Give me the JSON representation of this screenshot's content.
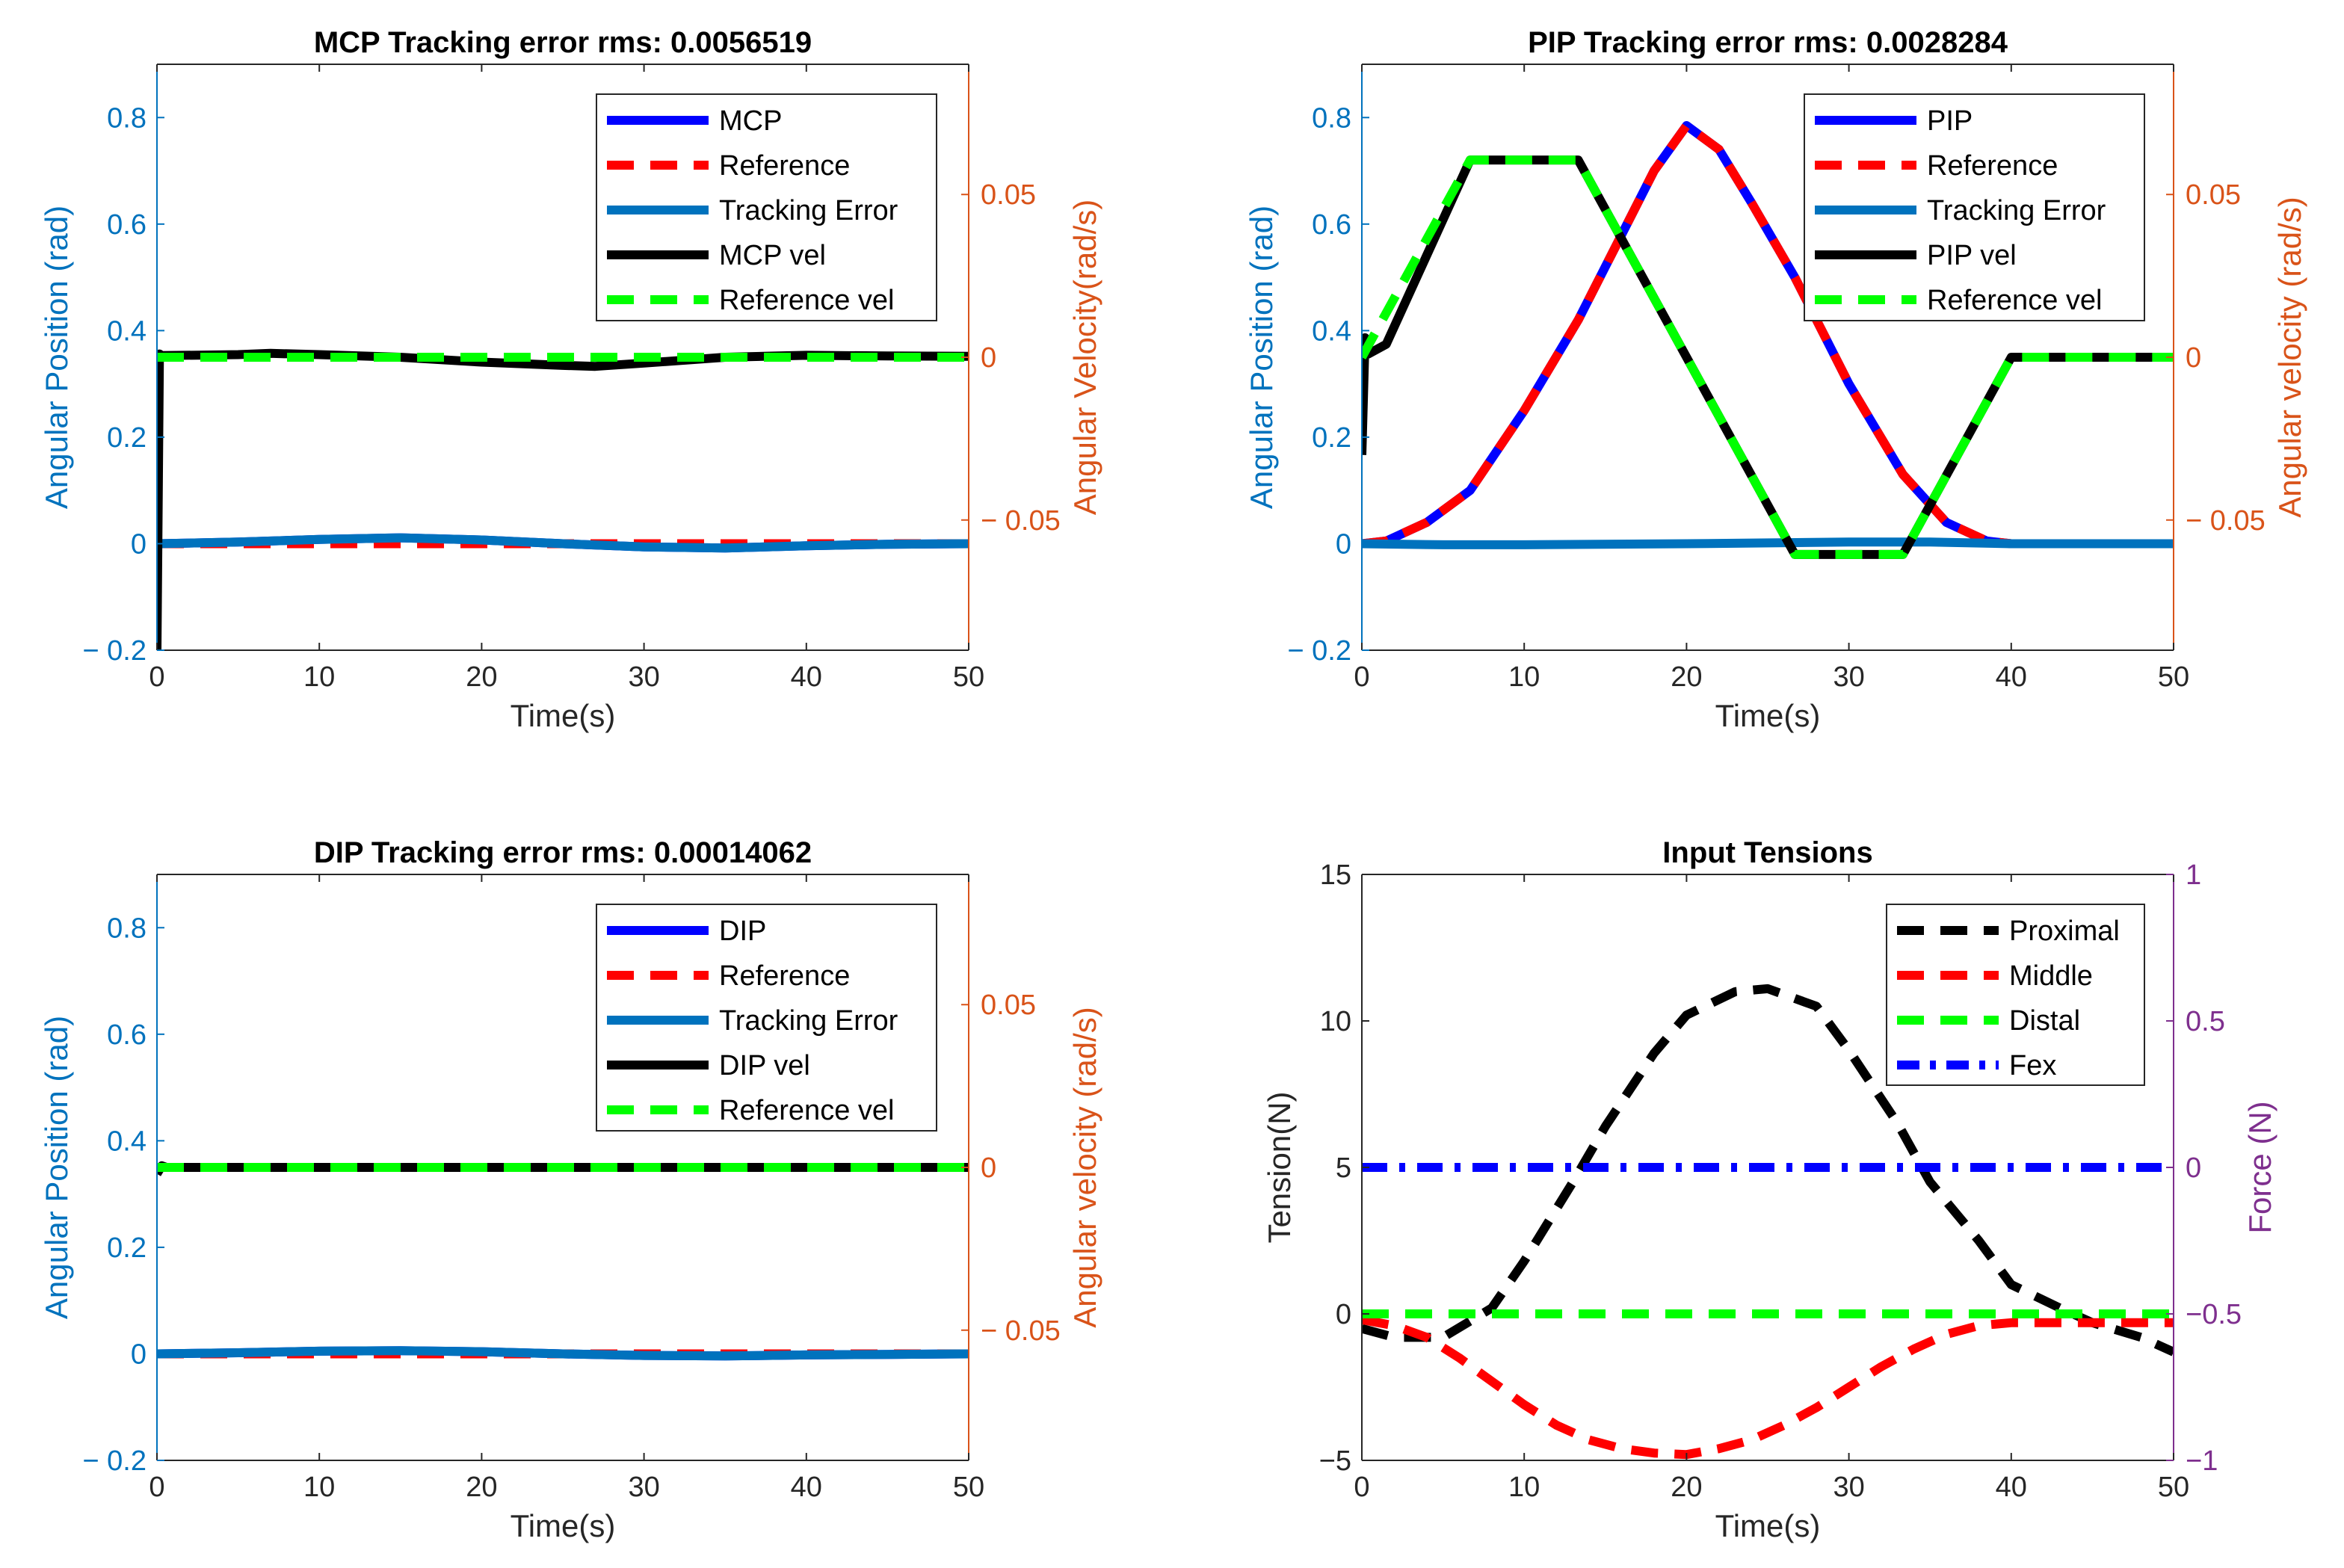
{
  "figure": {
    "name": "Finger joint tracking results"
  },
  "chart_data": [
    {
      "id": "mcp",
      "type": "line",
      "title": "MCP Tracking error rms: 0.0056519",
      "xlabel": "Time(s)",
      "ylabel_left": "Angular Position (rad)",
      "ylabel_right": "Angular Velocity(rad/s)",
      "xlim": [
        0,
        50
      ],
      "ylim_left": [
        -0.2,
        0.9
      ],
      "ylim_right": [
        -0.09,
        0.09
      ],
      "xticks": [
        0,
        10,
        20,
        30,
        40,
        50
      ],
      "xtick_labels": [
        "0",
        "10",
        "20",
        "30",
        "40",
        "50"
      ],
      "yticks_left": [
        -0.2,
        0,
        0.2,
        0.4,
        0.6,
        0.8
      ],
      "ytick_labels_left": [
        "− 0.2",
        "0",
        "0.2",
        "0.4",
        "0.6",
        "0.8"
      ],
      "yticks_right": [
        -0.05,
        0,
        0.05
      ],
      "ytick_labels_right": [
        "− 0.05",
        "0",
        "0.05"
      ],
      "legend_position": "top-right",
      "series": [
        {
          "name": "MCP",
          "axis": "left",
          "color": "#0000ff",
          "dash": "solid",
          "x": [
            0,
            5,
            10,
            15,
            20,
            25,
            30,
            35,
            40,
            45,
            50
          ],
          "y": [
            0,
            0.003,
            0.008,
            0.011,
            0.007,
            0,
            -0.006,
            -0.008,
            -0.004,
            -0.001,
            0
          ]
        },
        {
          "name": "Reference",
          "axis": "left",
          "color": "#ff0000",
          "dash": "dash",
          "x": [
            0,
            50
          ],
          "y": [
            0,
            0
          ]
        },
        {
          "name": "Tracking Error",
          "axis": "left",
          "color": "#0072bd",
          "dash": "solid",
          "x": [
            0,
            5,
            10,
            15,
            20,
            25,
            30,
            35,
            40,
            45,
            50
          ],
          "y": [
            0,
            0.003,
            0.008,
            0.011,
            0.007,
            0,
            -0.006,
            -0.008,
            -0.004,
            -0.001,
            0
          ]
        },
        {
          "name": "MCP vel",
          "axis": "right",
          "color": "#000000",
          "dash": "solid",
          "x": [
            0,
            0.15,
            0.3,
            5,
            7,
            10,
            15,
            20,
            25,
            27,
            30,
            35,
            40,
            45,
            50
          ],
          "y": [
            -0.09,
            0.001,
            0.0005,
            0.0008,
            0.0012,
            0.0008,
            0,
            -0.0015,
            -0.0025,
            -0.0028,
            -0.0018,
            0,
            0.0006,
            0.0004,
            0.0003
          ]
        },
        {
          "name": "Reference vel",
          "axis": "right",
          "color": "#00ff00",
          "dash": "dash",
          "x": [
            0,
            50
          ],
          "y": [
            0,
            0
          ]
        }
      ]
    },
    {
      "id": "pip",
      "type": "line",
      "title": "PIP Tracking error rms: 0.0028284",
      "xlabel": "Time(s)",
      "ylabel_left": "Angular Position (rad)",
      "ylabel_right": "Angular velocity (rad/s)",
      "xlim": [
        0,
        50
      ],
      "ylim_left": [
        -0.2,
        0.9
      ],
      "ylim_right": [
        -0.09,
        0.09
      ],
      "xticks": [
        0,
        10,
        20,
        30,
        40,
        50
      ],
      "xtick_labels": [
        "0",
        "10",
        "20",
        "30",
        "40",
        "50"
      ],
      "yticks_left": [
        -0.2,
        0,
        0.2,
        0.4,
        0.6,
        0.8
      ],
      "ytick_labels_left": [
        "− 0.2",
        "0",
        "0.2",
        "0.4",
        "0.6",
        "0.8"
      ],
      "yticks_right": [
        -0.05,
        0,
        0.05
      ],
      "ytick_labels_right": [
        "− 0.05",
        "0",
        "0.05"
      ],
      "legend_position": "top-right",
      "series": [
        {
          "name": "PIP",
          "axis": "left",
          "color": "#0000ff",
          "dash": "solid",
          "x": [
            0,
            1.5,
            4,
            6.67,
            10,
            13.33,
            16,
            18,
            20,
            22,
            24,
            26.67,
            30,
            33.33,
            36,
            38.5,
            40,
            50
          ],
          "y": [
            0,
            0.005,
            0.04,
            0.1,
            0.25,
            0.42,
            0.58,
            0.7,
            0.785,
            0.74,
            0.64,
            0.5,
            0.3,
            0.13,
            0.04,
            0.005,
            0,
            0
          ]
        },
        {
          "name": "Reference",
          "axis": "left",
          "color": "#ff0000",
          "dash": "dash",
          "x": [
            0,
            1.5,
            4,
            6.67,
            10,
            13.33,
            16,
            18,
            20,
            22,
            24,
            26.67,
            30,
            33.33,
            36,
            38.5,
            40,
            50
          ],
          "y": [
            0,
            0.005,
            0.04,
            0.1,
            0.25,
            0.42,
            0.58,
            0.7,
            0.785,
            0.74,
            0.64,
            0.5,
            0.3,
            0.13,
            0.04,
            0.005,
            0,
            0
          ]
        },
        {
          "name": "Tracking Error",
          "axis": "left",
          "color": "#0072bd",
          "dash": "solid",
          "x": [
            0,
            5,
            10,
            20,
            30,
            35,
            40,
            50
          ],
          "y": [
            0,
            -0.002,
            -0.002,
            0,
            0.003,
            0.003,
            0,
            0
          ]
        },
        {
          "name": "PIP vel",
          "axis": "right",
          "color": "#000000",
          "dash": "solid",
          "x": [
            0,
            0.2,
            0.4,
            1.5,
            6.67,
            13.33,
            26.67,
            33.33,
            40,
            50
          ],
          "y": [
            -0.03,
            0.006,
            0.001,
            0.004,
            0.0606,
            0.0606,
            -0.0606,
            -0.0606,
            0,
            0
          ]
        },
        {
          "name": "Reference vel",
          "axis": "right",
          "color": "#00ff00",
          "dash": "dash",
          "x": [
            0,
            6.67,
            13.33,
            26.67,
            33.33,
            40,
            50
          ],
          "y": [
            0,
            0.0606,
            0.0606,
            -0.0606,
            -0.0606,
            0,
            0
          ]
        }
      ]
    },
    {
      "id": "dip",
      "type": "line",
      "title": "DIP Tracking error rms: 0.00014062",
      "xlabel": "Time(s)",
      "ylabel_left": "Angular Position (rad)",
      "ylabel_right": "Angular velocity (rad/s)",
      "xlim": [
        0,
        50
      ],
      "ylim_left": [
        -0.2,
        0.9
      ],
      "ylim_right": [
        -0.09,
        0.09
      ],
      "xticks": [
        0,
        10,
        20,
        30,
        40,
        50
      ],
      "xtick_labels": [
        "0",
        "10",
        "20",
        "30",
        "40",
        "50"
      ],
      "yticks_left": [
        -0.2,
        0,
        0.2,
        0.4,
        0.6,
        0.8
      ],
      "ytick_labels_left": [
        "− 0.2",
        "0",
        "0.2",
        "0.4",
        "0.6",
        "0.8"
      ],
      "yticks_right": [
        -0.05,
        0,
        0.05
      ],
      "ytick_labels_right": [
        "− 0.05",
        "0",
        "0.05"
      ],
      "legend_position": "top-right",
      "series": [
        {
          "name": "DIP",
          "axis": "left",
          "color": "#0000ff",
          "dash": "solid",
          "x": [
            0,
            5,
            10,
            15,
            20,
            25,
            30,
            35,
            40,
            45,
            50
          ],
          "y": [
            0,
            0.002,
            0.005,
            0.006,
            0.004,
            0,
            -0.003,
            -0.004,
            -0.002,
            -0.001,
            0
          ]
        },
        {
          "name": "Reference",
          "axis": "left",
          "color": "#ff0000",
          "dash": "dash",
          "x": [
            0,
            50
          ],
          "y": [
            0,
            0
          ]
        },
        {
          "name": "Tracking Error",
          "axis": "left",
          "color": "#0072bd",
          "dash": "solid",
          "x": [
            0,
            5,
            10,
            15,
            20,
            25,
            30,
            35,
            40,
            45,
            50
          ],
          "y": [
            0,
            0.002,
            0.005,
            0.006,
            0.004,
            0,
            -0.003,
            -0.004,
            -0.002,
            -0.001,
            0
          ]
        },
        {
          "name": "DIP vel",
          "axis": "right",
          "color": "#000000",
          "dash": "solid",
          "x": [
            0,
            0.3,
            0.6,
            50
          ],
          "y": [
            -0.002,
            0.0005,
            0,
            0
          ]
        },
        {
          "name": "Reference vel",
          "axis": "right",
          "color": "#00ff00",
          "dash": "dash",
          "x": [
            0,
            50
          ],
          "y": [
            0,
            0
          ]
        }
      ]
    },
    {
      "id": "tensions",
      "type": "line",
      "title": "Input Tensions",
      "xlabel": "Time(s)",
      "ylabel_left": "Tension(N)",
      "ylabel_right": "Force (N)",
      "xlim": [
        0,
        50
      ],
      "ylim_left": [
        -5,
        15
      ],
      "ylim_right": [
        -1,
        1
      ],
      "xticks": [
        0,
        10,
        20,
        30,
        40,
        50
      ],
      "xtick_labels": [
        "0",
        "10",
        "20",
        "30",
        "40",
        "50"
      ],
      "yticks_left": [
        -5,
        0,
        5,
        10,
        15
      ],
      "ytick_labels_left": [
        "−5",
        "0",
        "5",
        "10",
        "15"
      ],
      "yticks_right": [
        -1,
        -0.5,
        0,
        0.5,
        1
      ],
      "ytick_labels_right": [
        "−1",
        "−0.5",
        "0",
        "0.5",
        "1"
      ],
      "right_axis_color": "#7e2f8e",
      "legend_position": "top-right",
      "series": [
        {
          "name": "Proximal",
          "axis": "left",
          "color": "#000000",
          "dash": "dash",
          "x": [
            0,
            2,
            5,
            8,
            10,
            13,
            15,
            18,
            20,
            23,
            25,
            28,
            30,
            33,
            35,
            38,
            40,
            43,
            45,
            48,
            50
          ],
          "y": [
            -0.5,
            -0.8,
            -0.8,
            0.2,
            1.8,
            4.5,
            6.4,
            8.9,
            10.2,
            11.0,
            11.1,
            10.5,
            9.0,
            6.5,
            4.5,
            2.5,
            1.0,
            0.2,
            -0.3,
            -0.8,
            -1.3
          ]
        },
        {
          "name": "Middle",
          "axis": "left",
          "color": "#ff0000",
          "dash": "dash",
          "x": [
            0,
            2,
            4,
            6,
            8,
            10,
            12,
            14,
            16,
            18,
            20,
            22,
            24,
            26,
            28,
            30,
            32,
            34,
            36,
            38,
            40,
            45,
            50
          ],
          "y": [
            -0.2,
            -0.4,
            -0.8,
            -1.5,
            -2.3,
            -3.1,
            -3.8,
            -4.3,
            -4.6,
            -4.75,
            -4.8,
            -4.6,
            -4.3,
            -3.8,
            -3.2,
            -2.5,
            -1.8,
            -1.2,
            -0.7,
            -0.4,
            -0.3,
            -0.3,
            -0.3
          ]
        },
        {
          "name": "Distal",
          "axis": "left",
          "color": "#00ff00",
          "dash": "dash",
          "x": [
            0,
            50
          ],
          "y": [
            0,
            0
          ]
        },
        {
          "name": "Fex",
          "axis": "right",
          "color": "#0000ff",
          "dash": "dashdot",
          "x": [
            0,
            50
          ],
          "y": [
            0,
            0
          ]
        }
      ]
    }
  ]
}
